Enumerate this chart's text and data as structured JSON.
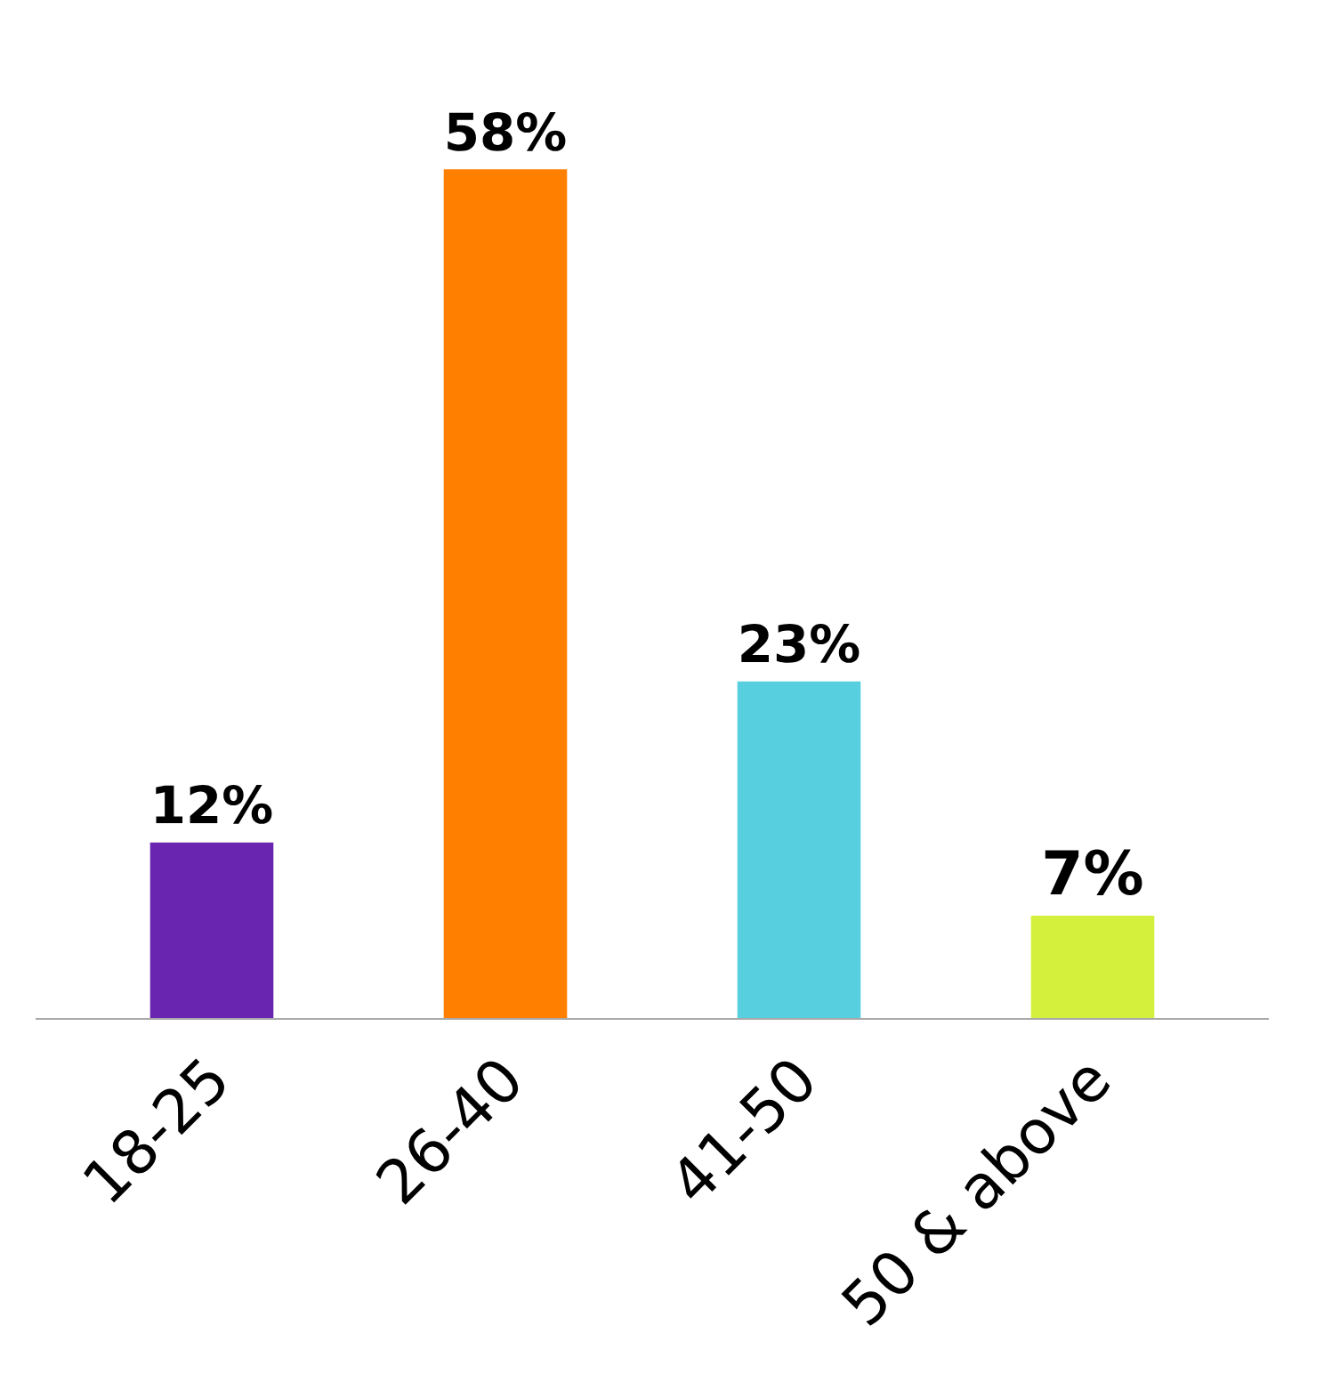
{
  "chart_data": {
    "type": "bar",
    "categories": [
      "18-25",
      "26-40",
      "41-50",
      "50 & above"
    ],
    "values": [
      12,
      58,
      23,
      7
    ],
    "colors": [
      "#6a25b0",
      "#ff7f00",
      "#58cfdf",
      "#d4f03c"
    ],
    "value_labels": [
      "12%",
      "58%",
      "23%",
      "7%"
    ],
    "legend": false
  }
}
